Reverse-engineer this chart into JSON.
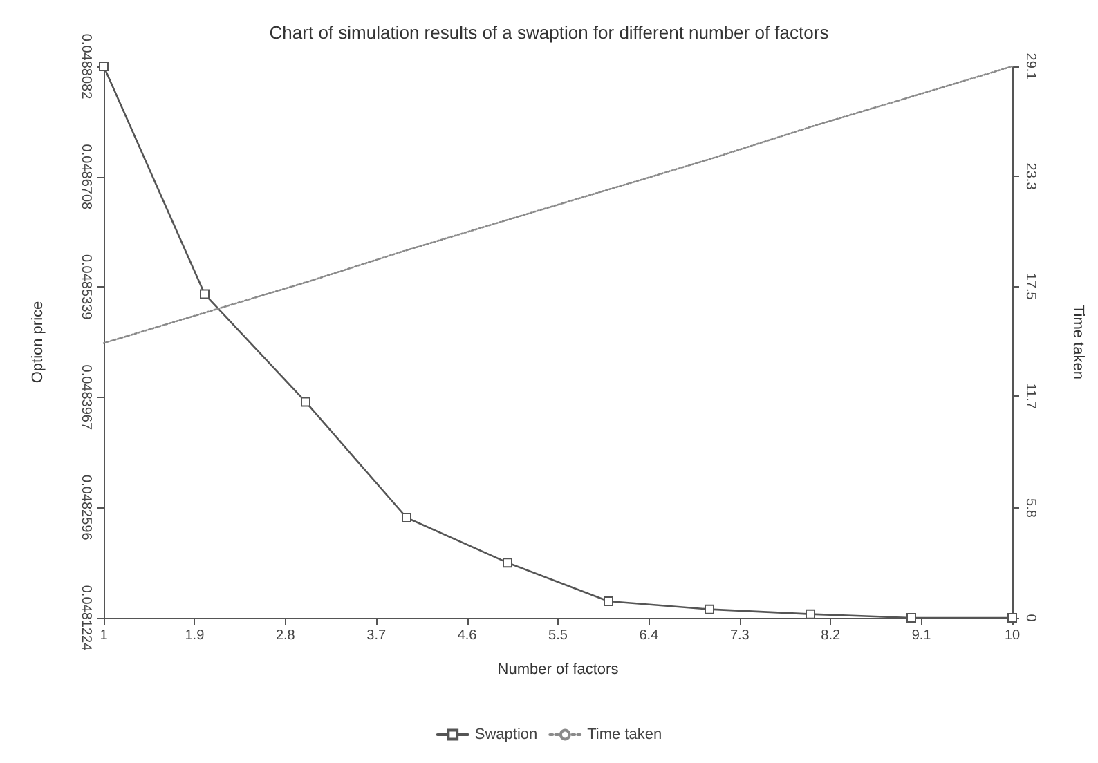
{
  "chart_data": {
    "type": "line",
    "title": "Chart of simulation results of a swaption for different number of factors",
    "xlabel": "Number of factors",
    "ylabel": "Option price",
    "y2label": "Time taken",
    "x": [
      1,
      2,
      3,
      4,
      5,
      6,
      7,
      8,
      9,
      10
    ],
    "series": [
      {
        "name": "Swaption",
        "color": "#555555",
        "marker": "square",
        "line_style": "solid",
        "values": [
          0.0488082,
          0.048525,
          0.048391,
          0.048247,
          0.048191,
          0.048143,
          0.048133,
          0.048127,
          0.0481224,
          0.0481224
        ]
      },
      {
        "name": "Time taken",
        "color": "#8a8a8a",
        "axis": "y2",
        "marker": "none",
        "line_style": "dotted",
        "values": [
          14.5,
          16.1,
          17.7,
          19.4,
          21.0,
          22.6,
          24.2,
          25.9,
          27.5,
          29.1
        ]
      }
    ],
    "xlim": [
      1,
      10
    ],
    "xticks": [
      1,
      1.9,
      2.8,
      3.7,
      4.6,
      5.5,
      6.4,
      7.3,
      8.2,
      9.1,
      10
    ],
    "ylim": [
      0.0481224,
      0.0488082
    ],
    "yticks": [
      {
        "value": 0.0481224,
        "label": "0.0481224"
      },
      {
        "value": 0.0482596,
        "label": "0.0482596"
      },
      {
        "value": 0.0483967,
        "label": "0.0483967"
      },
      {
        "value": 0.0485339,
        "label": "0.0485339"
      },
      {
        "value": 0.0486708,
        "label": "0.0486708"
      },
      {
        "value": 0.0488082,
        "label": "0.0488082"
      }
    ],
    "y2lim": [
      0,
      29.1
    ],
    "y2ticks": [
      0,
      5.8,
      11.7,
      17.5,
      23.3,
      29.1
    ],
    "grid": false,
    "legend": "bottom"
  }
}
